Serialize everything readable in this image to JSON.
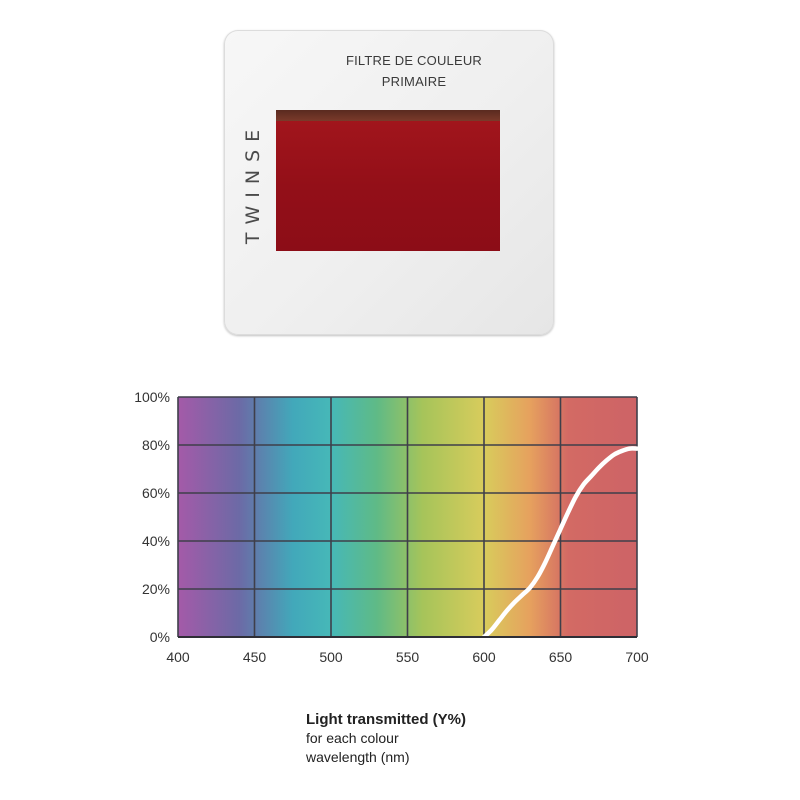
{
  "slide": {
    "title_line1": "FILTRE DE COULEUR",
    "title_line2": "PRIMAIRE",
    "brand": "TWINSE",
    "filter_color": "#970f19"
  },
  "caption": {
    "title": "Light transmitted (Y%)",
    "line2": "for each colour",
    "line3": "wavelength (nm)"
  },
  "chart_data": {
    "type": "line",
    "title": "",
    "xlabel": "",
    "ylabel": "",
    "xlim": [
      400,
      700
    ],
    "ylim": [
      0,
      100
    ],
    "x_ticks": [
      400,
      450,
      500,
      550,
      600,
      650,
      700
    ],
    "x_tick_labels": [
      "400",
      "450",
      "500",
      "550",
      "600",
      "650",
      "700"
    ],
    "y_ticks": [
      0,
      20,
      40,
      60,
      80,
      100
    ],
    "y_tick_labels": [
      "0%",
      "20%",
      "40%",
      "60%",
      "80%",
      "100%"
    ],
    "grid": true,
    "legend": "none",
    "line_color": "#ffffff",
    "background_gradient": [
      {
        "wavelength": 400,
        "color": "#a45aa8"
      },
      {
        "wavelength": 440,
        "color": "#6c6aa6"
      },
      {
        "wavelength": 475,
        "color": "#42a8ba"
      },
      {
        "wavelength": 500,
        "color": "#46b8b8"
      },
      {
        "wavelength": 530,
        "color": "#5fba86"
      },
      {
        "wavelength": 560,
        "color": "#a6c45a"
      },
      {
        "wavelength": 600,
        "color": "#d8cc5c"
      },
      {
        "wavelength": 630,
        "color": "#e6a15e"
      },
      {
        "wavelength": 655,
        "color": "#d36a64"
      },
      {
        "wavelength": 700,
        "color": "#cd6366"
      }
    ],
    "series": [
      {
        "x": [
          600,
          605,
          610,
          615,
          620,
          625,
          630,
          635,
          640,
          645,
          650,
          655,
          660,
          665,
          670,
          675,
          680,
          685,
          690,
          695,
          700
        ],
        "values": [
          0,
          3,
          7,
          11,
          14.5,
          17.5,
          20.5,
          25,
          31,
          38,
          45,
          52,
          58.5,
          63.5,
          67,
          70.5,
          73.5,
          76,
          77.5,
          78.5,
          78.5
        ]
      }
    ]
  }
}
